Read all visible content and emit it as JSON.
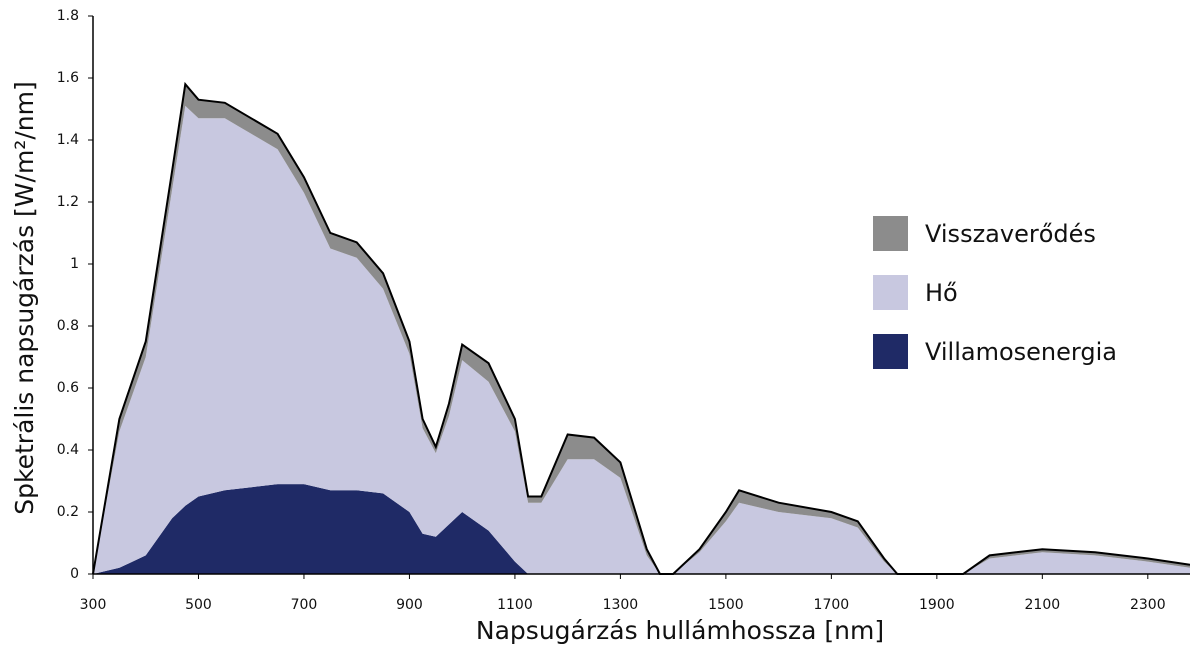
{
  "chart_data": {
    "type": "stacked_area",
    "xlabel": "Napsugárzás hullámhossza [nm]",
    "ylabel": "Spketrális napsugárzás [W/m²/nm]",
    "x": [
      300,
      350,
      400,
      450,
      475,
      500,
      550,
      600,
      650,
      700,
      750,
      800,
      850,
      900,
      925,
      950,
      975,
      1000,
      1050,
      1100,
      1125,
      1150,
      1200,
      1250,
      1300,
      1350,
      1375,
      1400,
      1450,
      1500,
      1525,
      1600,
      1700,
      1750,
      1800,
      1825,
      1900,
      1950,
      2000,
      2100,
      2200,
      2300,
      2380
    ],
    "series": [
      {
        "name": "Villamosenergia",
        "color": "#1f2a66",
        "values": [
          0,
          0.02,
          0.06,
          0.18,
          0.22,
          0.25,
          0.27,
          0.28,
          0.29,
          0.29,
          0.27,
          0.27,
          0.26,
          0.2,
          0.13,
          0.12,
          0.16,
          0.2,
          0.14,
          0.04,
          0,
          0,
          0,
          0,
          0,
          0,
          0,
          0,
          0,
          0,
          0,
          0,
          0,
          0,
          0,
          0,
          0,
          0,
          0,
          0,
          0,
          0,
          0
        ]
      },
      {
        "name": "Hő",
        "color": "#c8c8e0",
        "values": [
          0,
          0.44,
          0.64,
          1.06,
          1.29,
          1.22,
          1.2,
          1.14,
          1.08,
          0.94,
          0.78,
          0.75,
          0.66,
          0.51,
          0.34,
          0.27,
          0.35,
          0.49,
          0.48,
          0.42,
          0.23,
          0.23,
          0.37,
          0.37,
          0.31,
          0.06,
          0,
          0,
          0.07,
          0.17,
          0.23,
          0.2,
          0.18,
          0.15,
          0.04,
          0,
          0,
          0,
          0.05,
          0.07,
          0.06,
          0.04,
          0.02
        ]
      },
      {
        "name": "Visszaverődés",
        "color": "#8c8c8c",
        "values": [
          0,
          0.04,
          0.05,
          0.06,
          0.07,
          0.06,
          0.05,
          0.05,
          0.05,
          0.05,
          0.05,
          0.05,
          0.05,
          0.04,
          0.03,
          0.02,
          0.04,
          0.05,
          0.06,
          0.04,
          0.02,
          0.02,
          0.08,
          0.07,
          0.05,
          0.02,
          0,
          0,
          0.01,
          0.03,
          0.04,
          0.03,
          0.02,
          0.02,
          0.01,
          0,
          0,
          0,
          0.01,
          0.01,
          0.01,
          0.01,
          0.01
        ]
      }
    ],
    "xlim": [
      300,
      2380
    ],
    "xticks": [
      300,
      500,
      700,
      900,
      1100,
      1300,
      1500,
      1700,
      1900,
      2100,
      2300
    ],
    "ylim": [
      0,
      1.8
    ],
    "yticks": [
      0,
      0.2,
      0.4,
      0.6,
      0.8,
      1,
      1.2,
      1.4,
      1.6,
      1.8
    ],
    "grid": false
  }
}
